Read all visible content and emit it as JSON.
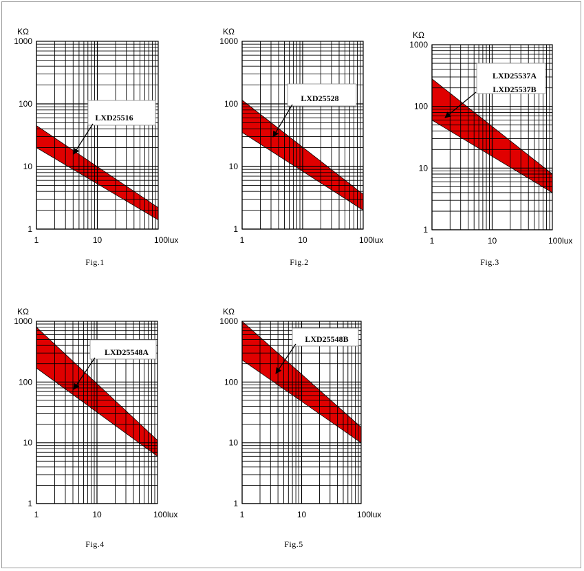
{
  "colors": {
    "band": "#e00000",
    "grid": "#000000",
    "background": "#ffffff"
  },
  "chart_data": [
    {
      "type": "area",
      "title": "",
      "caption": "Fig.1",
      "xlabel": "",
      "x_unit": "lux",
      "ylabel": "KΩ",
      "x_scale": "log",
      "y_scale": "log",
      "xlim": [
        1,
        100
      ],
      "ylim": [
        1,
        1000
      ],
      "x_ticks": [
        "1",
        "10",
        "100"
      ],
      "y_ticks": [
        "1",
        "10",
        "100",
        "1000"
      ],
      "grid": true,
      "series": [
        {
          "name": "LXD25516",
          "x": [
            1,
            100
          ],
          "upper": [
            45,
            2.2
          ],
          "lower": [
            20,
            1.4
          ]
        }
      ],
      "annotations": [
        "LXD25516"
      ]
    },
    {
      "type": "area",
      "title": "",
      "caption": "Fig.2",
      "xlabel": "",
      "x_unit": "lux",
      "ylabel": "KΩ",
      "x_scale": "log",
      "y_scale": "log",
      "xlim": [
        1,
        100
      ],
      "ylim": [
        1,
        1000
      ],
      "x_ticks": [
        "1",
        "10",
        "100"
      ],
      "y_ticks": [
        "1",
        "10",
        "100",
        "1000"
      ],
      "grid": true,
      "series": [
        {
          "name": "LXD25528",
          "x": [
            1,
            100
          ],
          "upper": [
            115,
            3.6
          ],
          "lower": [
            35,
            2
          ]
        }
      ],
      "annotations": [
        "LXD25528"
      ]
    },
    {
      "type": "area",
      "title": "",
      "caption": "Fig.3",
      "xlabel": "",
      "x_unit": "lux",
      "ylabel": "KΩ",
      "x_scale": "log",
      "y_scale": "log",
      "xlim": [
        1,
        100
      ],
      "ylim": [
        1,
        1000
      ],
      "x_ticks": [
        "1",
        "10",
        "100"
      ],
      "y_ticks": [
        "1",
        "10",
        "100",
        "1000"
      ],
      "grid": true,
      "series": [
        {
          "name": "LXD25537A / LXD25537B",
          "x": [
            1,
            100
          ],
          "upper": [
            280,
            8
          ],
          "lower": [
            60,
            4
          ]
        }
      ],
      "annotations": [
        "LXD25537A",
        "LXD25537B"
      ]
    },
    {
      "type": "area",
      "title": "",
      "caption": "Fig.4",
      "xlabel": "",
      "x_unit": "lux",
      "ylabel": "KΩ",
      "x_scale": "log",
      "y_scale": "log",
      "xlim": [
        1,
        100
      ],
      "ylim": [
        1,
        1000
      ],
      "x_ticks": [
        "1",
        "10",
        "100"
      ],
      "y_ticks": [
        "1",
        "10",
        "100",
        "1000"
      ],
      "grid": true,
      "series": [
        {
          "name": "LXD25548A",
          "x": [
            1,
            100
          ],
          "upper": [
            800,
            11
          ],
          "lower": [
            170,
            6
          ]
        }
      ],
      "annotations": [
        "LXD25548A"
      ]
    },
    {
      "type": "area",
      "title": "",
      "caption": "Fig.5",
      "xlabel": "",
      "x_unit": "lux",
      "ylabel": "KΩ",
      "x_scale": "log",
      "y_scale": "log",
      "xlim": [
        1,
        100
      ],
      "ylim": [
        1,
        1000
      ],
      "x_ticks": [
        "1",
        "10",
        "100"
      ],
      "y_ticks": [
        "1",
        "10",
        "100",
        "1000"
      ],
      "grid": true,
      "series": [
        {
          "name": "LXD25548B",
          "x": [
            1,
            100
          ],
          "upper": [
            1000,
            18
          ],
          "lower": [
            230,
            10
          ]
        }
      ],
      "annotations": [
        "LXD25548B"
      ]
    }
  ]
}
